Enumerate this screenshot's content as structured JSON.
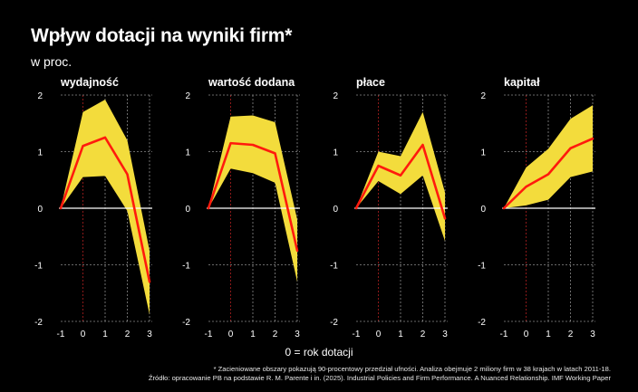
{
  "title": "Wpływ dotacji na wyniki firm*",
  "subtitle": "w proc.",
  "x_note": "0 = rok dotacji",
  "footnote_1": "* Zacieniowane obszary pokazują 90-procentowy przedział ufności. Analiza obejmuje 2 miliony firm w 38 krajach w latach 2011-18.",
  "footnote_2": "Źródło: opracowanie PB na podstawie R. M. Parente i in. (2025). Industrial Policies and Firm Performance. A Nuanced Relationship. IMF Working Paper",
  "colors": {
    "band": "#f3dc3c",
    "line": "#ff1a0d",
    "background": "#000000",
    "grid": "#8a8a8a",
    "zero_marker": "#b02020"
  },
  "chart_data": [
    {
      "type": "line",
      "title": "wydajność",
      "x": [
        -1,
        0,
        1,
        2,
        3
      ],
      "x_ticks": [
        "-1",
        "0",
        "1",
        "2",
        "3"
      ],
      "y_ticks": [
        "2",
        "1",
        "0",
        "-1",
        "-2"
      ],
      "ylim": [
        -2,
        2
      ],
      "series": [
        {
          "values": [
            0,
            1.1,
            1.25,
            0.6,
            -1.3
          ]
        }
      ],
      "band_upper": [
        0,
        1.7,
        1.92,
        1.2,
        -0.75
      ],
      "band_lower": [
        0,
        0.55,
        0.57,
        -0.05,
        -1.88
      ]
    },
    {
      "type": "line",
      "title": "wartość dodana",
      "x": [
        -1,
        0,
        1,
        2,
        3
      ],
      "x_ticks": [
        "-1",
        "0",
        "1",
        "2",
        "3"
      ],
      "y_ticks": [
        "2",
        "1",
        "0",
        "-1",
        "-2"
      ],
      "ylim": [
        -2,
        2
      ],
      "series": [
        {
          "values": [
            0,
            1.15,
            1.12,
            0.97,
            -0.75
          ]
        }
      ],
      "band_upper": [
        0,
        1.62,
        1.64,
        1.52,
        -0.2
      ],
      "band_lower": [
        0,
        0.7,
        0.62,
        0.45,
        -1.3
      ]
    },
    {
      "type": "line",
      "title": "płace",
      "x": [
        -1,
        0,
        1,
        2,
        3
      ],
      "x_ticks": [
        "-1",
        "0",
        "1",
        "2",
        "3"
      ],
      "y_ticks": [
        "2",
        "1",
        "0",
        "-1",
        "-2"
      ],
      "ylim": [
        -2,
        2
      ],
      "series": [
        {
          "values": [
            0,
            0.75,
            0.58,
            1.12,
            -0.18
          ]
        }
      ],
      "band_upper": [
        0,
        1.0,
        0.92,
        1.7,
        0.28
      ],
      "band_lower": [
        0,
        0.48,
        0.25,
        0.58,
        -0.58
      ]
    },
    {
      "type": "line",
      "title": "kapitał",
      "x": [
        -1,
        0,
        1,
        2,
        3
      ],
      "x_ticks": [
        "-1",
        "0",
        "1",
        "2",
        "3"
      ],
      "y_ticks": [
        "2",
        "1",
        "0",
        "-1",
        "-2"
      ],
      "ylim": [
        -2,
        2
      ],
      "series": [
        {
          "values": [
            0,
            0.38,
            0.6,
            1.06,
            1.23
          ]
        }
      ],
      "band_upper": [
        0,
        0.72,
        1.05,
        1.58,
        1.82
      ],
      "band_lower": [
        0,
        0.05,
        0.15,
        0.55,
        0.65
      ]
    }
  ]
}
